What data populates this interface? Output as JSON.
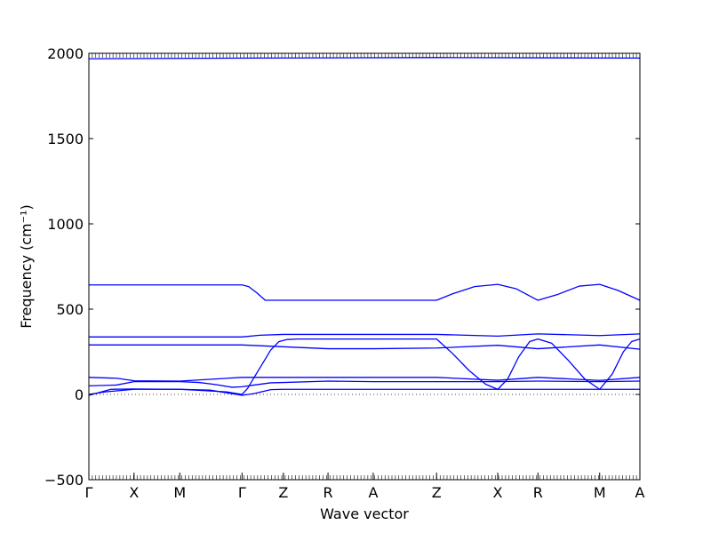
{
  "chart_data": {
    "type": "line",
    "title": "",
    "xlabel": "Wave vector",
    "ylabel": "Frequency (cm⁻¹)",
    "ylim": [
      -500,
      2000
    ],
    "yticks": [
      -500,
      0,
      500,
      1000,
      1500,
      2000
    ],
    "grid": false,
    "legend": "none",
    "line_color": "#0000ff",
    "x_tick_positions": [
      0,
      0.082,
      0.165,
      0.278,
      0.353,
      0.434,
      0.516,
      0.631,
      0.742,
      0.815,
      0.927,
      1.0
    ],
    "x_tick_labels": [
      "Γ",
      "X",
      "M",
      "Γ",
      "Z",
      "R",
      "A",
      "Z",
      "X",
      "R",
      "M",
      "A"
    ],
    "zero_line_style": "dotted",
    "series": [
      {
        "values": [
          [
            0,
            1968
          ],
          [
            0.3,
            1972
          ],
          [
            0.631,
            1975
          ],
          [
            1.0,
            1972
          ]
        ]
      },
      {
        "values": [
          [
            0,
            642
          ],
          [
            0.278,
            642
          ],
          [
            0.29,
            632
          ],
          [
            0.305,
            595
          ],
          [
            0.32,
            552
          ],
          [
            0.631,
            552
          ],
          [
            0.66,
            590
          ],
          [
            0.7,
            632
          ],
          [
            0.742,
            645
          ],
          [
            0.775,
            620
          ],
          [
            0.815,
            552
          ],
          [
            0.85,
            585
          ],
          [
            0.89,
            635
          ],
          [
            0.927,
            645
          ],
          [
            0.96,
            610
          ],
          [
            1.0,
            552
          ]
        ]
      },
      {
        "values": [
          [
            0,
            337
          ],
          [
            0.278,
            337
          ],
          [
            0.31,
            347
          ],
          [
            0.353,
            352
          ],
          [
            0.631,
            352
          ],
          [
            0.742,
            342
          ],
          [
            0.815,
            355
          ],
          [
            0.927,
            345
          ],
          [
            1.0,
            355
          ]
        ]
      },
      {
        "values": [
          [
            0,
            290
          ],
          [
            0.278,
            290
          ],
          [
            0.434,
            268
          ],
          [
            0.516,
            268
          ],
          [
            0.631,
            272
          ],
          [
            0.742,
            288
          ],
          [
            0.815,
            268
          ],
          [
            0.927,
            290
          ],
          [
            1.0,
            265
          ]
        ]
      },
      {
        "values": [
          [
            0,
            100
          ],
          [
            0.05,
            95
          ],
          [
            0.082,
            80
          ],
          [
            0.165,
            78
          ],
          [
            0.278,
            100
          ],
          [
            0.631,
            100
          ],
          [
            0.742,
            83
          ],
          [
            0.815,
            100
          ],
          [
            0.927,
            82
          ],
          [
            1.0,
            100
          ]
        ]
      },
      {
        "values": [
          [
            0,
            50
          ],
          [
            0.05,
            55
          ],
          [
            0.082,
            75
          ],
          [
            0.165,
            75
          ],
          [
            0.2,
            70
          ],
          [
            0.23,
            58
          ],
          [
            0.26,
            42
          ],
          [
            0.278,
            45
          ],
          [
            0.3,
            55
          ],
          [
            0.33,
            68
          ],
          [
            0.353,
            70
          ],
          [
            0.434,
            78
          ],
          [
            0.516,
            75
          ],
          [
            0.631,
            75
          ],
          [
            0.742,
            75
          ],
          [
            0.815,
            78
          ],
          [
            0.927,
            75
          ],
          [
            1.0,
            78
          ]
        ]
      },
      {
        "values": [
          [
            0,
            -5
          ],
          [
            0.04,
            30
          ],
          [
            0.082,
            32
          ],
          [
            0.165,
            30
          ],
          [
            0.22,
            25
          ],
          [
            0.278,
            -5
          ],
          [
            0.3,
            5
          ],
          [
            0.33,
            28
          ],
          [
            0.353,
            30
          ],
          [
            0.631,
            30
          ],
          [
            0.742,
            30
          ],
          [
            0.815,
            30
          ],
          [
            0.927,
            30
          ],
          [
            1.0,
            30
          ]
        ]
      },
      {
        "values": [
          [
            0,
            0
          ],
          [
            0.03,
            15
          ],
          [
            0.082,
            30
          ],
          [
            0.165,
            30
          ],
          [
            0.25,
            15
          ],
          [
            0.278,
            0
          ],
          [
            0.288,
            35
          ],
          [
            0.3,
            100
          ],
          [
            0.315,
            180
          ],
          [
            0.33,
            260
          ],
          [
            0.345,
            310
          ],
          [
            0.36,
            322
          ],
          [
            0.38,
            325
          ],
          [
            0.631,
            325
          ],
          [
            0.66,
            240
          ],
          [
            0.69,
            140
          ],
          [
            0.72,
            60
          ],
          [
            0.742,
            30
          ],
          [
            0.76,
            90
          ],
          [
            0.78,
            220
          ],
          [
            0.8,
            310
          ],
          [
            0.815,
            325
          ],
          [
            0.84,
            300
          ],
          [
            0.87,
            200
          ],
          [
            0.9,
            90
          ],
          [
            0.927,
            30
          ],
          [
            0.95,
            120
          ],
          [
            0.97,
            250
          ],
          [
            0.985,
            310
          ],
          [
            1.0,
            325
          ]
        ]
      }
    ]
  }
}
